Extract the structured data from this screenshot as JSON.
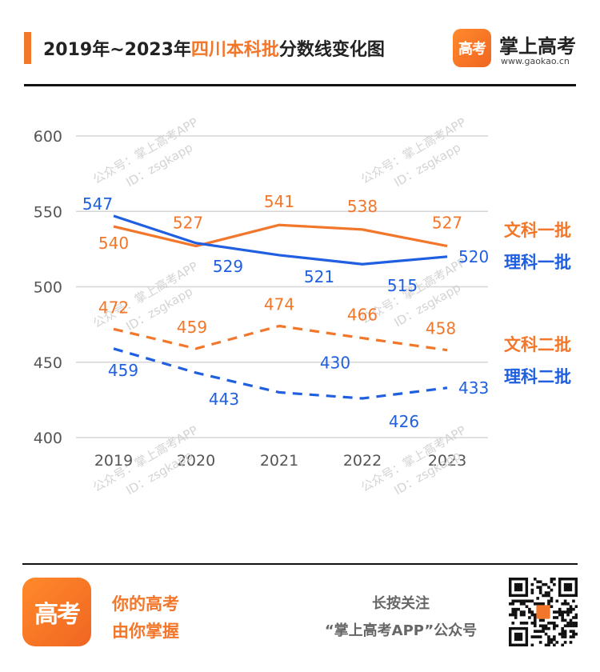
{
  "header": {
    "title_prefix": "2019年~2023年",
    "title_highlight": "四川本科批",
    "title_suffix": "分数线变化图",
    "brand_logo_text": "高考",
    "brand_name": "掌上高考",
    "brand_url": "www.gaokao.cn"
  },
  "watermark": {
    "line1": "公众号：掌上高考APP",
    "line2": "ID：zsgkapp"
  },
  "chart_data": {
    "type": "line",
    "x": [
      "2019",
      "2020",
      "2021",
      "2022",
      "2023"
    ],
    "ylim": [
      400,
      600
    ],
    "yticks": [
      400,
      450,
      500,
      550,
      600
    ],
    "grid": true,
    "legend_placement": "right",
    "series": [
      {
        "name": "文科一批",
        "values": [
          540,
          527,
          541,
          538,
          527
        ],
        "color": "#f2772b",
        "style": "solid"
      },
      {
        "name": "理科一批",
        "values": [
          547,
          529,
          521,
          515,
          520
        ],
        "color": "#1f5fe0",
        "style": "solid"
      },
      {
        "name": "文科二批",
        "values": [
          472,
          459,
          474,
          466,
          458
        ],
        "color": "#f2772b",
        "style": "dashed"
      },
      {
        "name": "理科二批",
        "values": [
          459,
          443,
          430,
          426,
          433
        ],
        "color": "#1f5fe0",
        "style": "dashed"
      }
    ]
  },
  "footer": {
    "logo_text": "高考",
    "slogan_line1": "你的高考",
    "slogan_line2": "由你掌握",
    "follow_line1": "长按关注",
    "follow_line2": "“掌上高考APP”公众号"
  }
}
